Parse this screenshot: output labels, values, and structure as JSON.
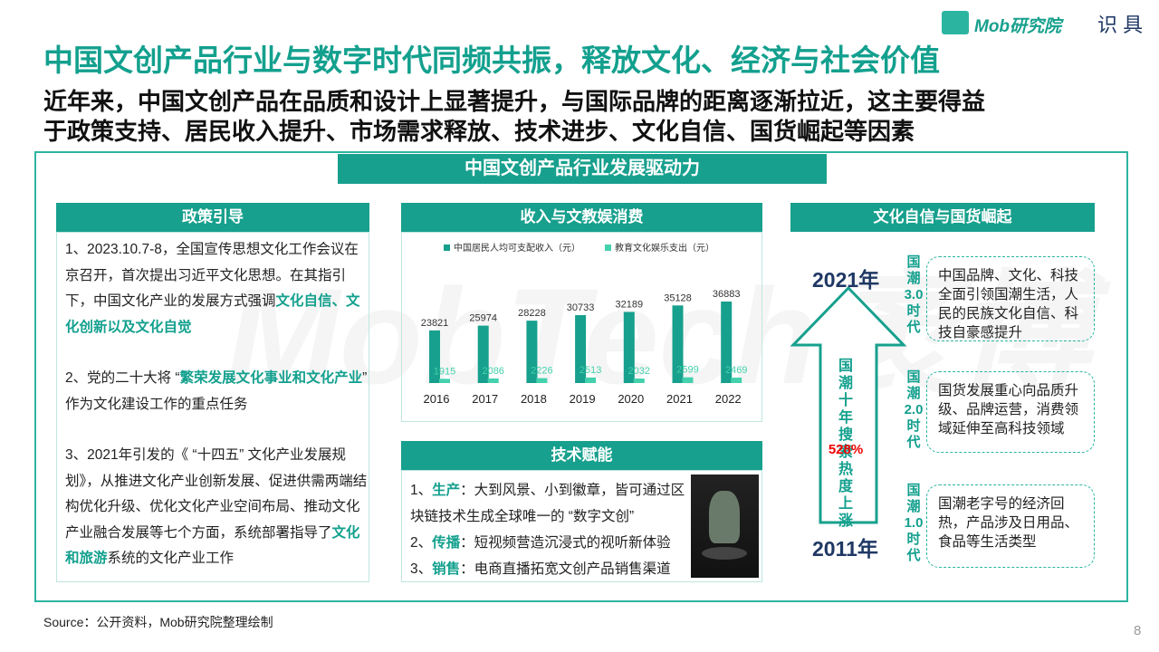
{
  "header": {
    "logo": "Mob研究院",
    "logo_secondary": "识 具",
    "title": "中国文创产品行业与数字时代同频共振，释放文化、经济与社会价值",
    "subtitle_lines": [
      "近年来，中国文创产品在品质和设计上显著提升，与国际品牌的距离逐渐拉近，这主要得益",
      "于政策支持、居民收入提升、市场需求释放、技术进步、文化自信、国货崛起等因素"
    ]
  },
  "watermark": "MobTech袤博",
  "main_title": "中国文创产品行业发展驱动力",
  "policy": {
    "title": "政策引导",
    "items": [
      [
        {
          "text": "1、2023.10.7-8，全国宣传思想文化工作会议在京召开，首次提出习近平文化思想。在其指引下，中国文化产业的发展方式强调",
          "em": false
        },
        {
          "text": "文化自信、文化创新以及文化自觉",
          "em": true
        }
      ],
      [
        {
          "text": "2、党的二十大将 “",
          "em": false
        },
        {
          "text": "繁荣发展文化事业和文化产业",
          "em": true
        },
        {
          "text": "” 作为文化建设工作的重点任务",
          "em": false
        }
      ],
      [
        {
          "text": "3、2021年引发的《 “十四五” 文化产业发展规划》，从推进文化产业创新发展、促进供需两端结构优化升级、优化文化产业空间布局、推动文化产业融合发展等七个方面，系统部署指导了",
          "em": false
        },
        {
          "text": "文化和旅游",
          "em": true
        },
        {
          "text": "系统的文化产业工作",
          "em": false
        }
      ]
    ]
  },
  "income": {
    "title": "收入与文教娱消费",
    "chart_data": {
      "type": "bar",
      "categories": [
        "2016",
        "2017",
        "2018",
        "2019",
        "2020",
        "2021",
        "2022"
      ],
      "series": [
        {
          "name": "中国居民人均可支配收入（元）",
          "color": "#17a08d",
          "values": [
            23821,
            25974,
            28228,
            30733,
            32189,
            35128,
            36883
          ]
        },
        {
          "name": "教育文化娱乐支出（元）",
          "color": "#45d1ad",
          "values": [
            1915,
            2086,
            2226,
            2513,
            2032,
            2599,
            2469
          ]
        }
      ]
    }
  },
  "tech": {
    "title": "技术赋能",
    "items": [
      {
        "num": "1、",
        "label": "生产",
        "text": "：大到风景、小到徽章，皆可通过区块链技术生成全球唯一的 “数字文创”"
      },
      {
        "num": "2、",
        "label": "传播",
        "text": "：短视频营造沉浸式的视听新体验"
      },
      {
        "num": "3、",
        "label": "销售",
        "text": "：电商直播拓宽文创产品销售渠道"
      }
    ]
  },
  "culture": {
    "title": "文化自信与国货崛起",
    "year_top": "2021年",
    "year_bottom": "2011年",
    "arrow_text": "国潮十年搜索热度上涨",
    "arrow_value": "528%",
    "stages": [
      {
        "label": "国潮3.0时代",
        "text": "中国品牌、文化、科技全面引领国潮生活，人民的民族文化自信、科技自豪感提升"
      },
      {
        "label": "国潮2.0时代",
        "text": "国货发展重心向品质升级、品牌运营，消费领域延伸至高科技领域"
      },
      {
        "label": "国潮1.0时代",
        "text": "国潮老字号的经济回热，产品涉及日用品、食品等生活类型"
      }
    ]
  },
  "footer": {
    "source": "Source：公开资料，Mob研究院整理绘制",
    "page": "8"
  }
}
